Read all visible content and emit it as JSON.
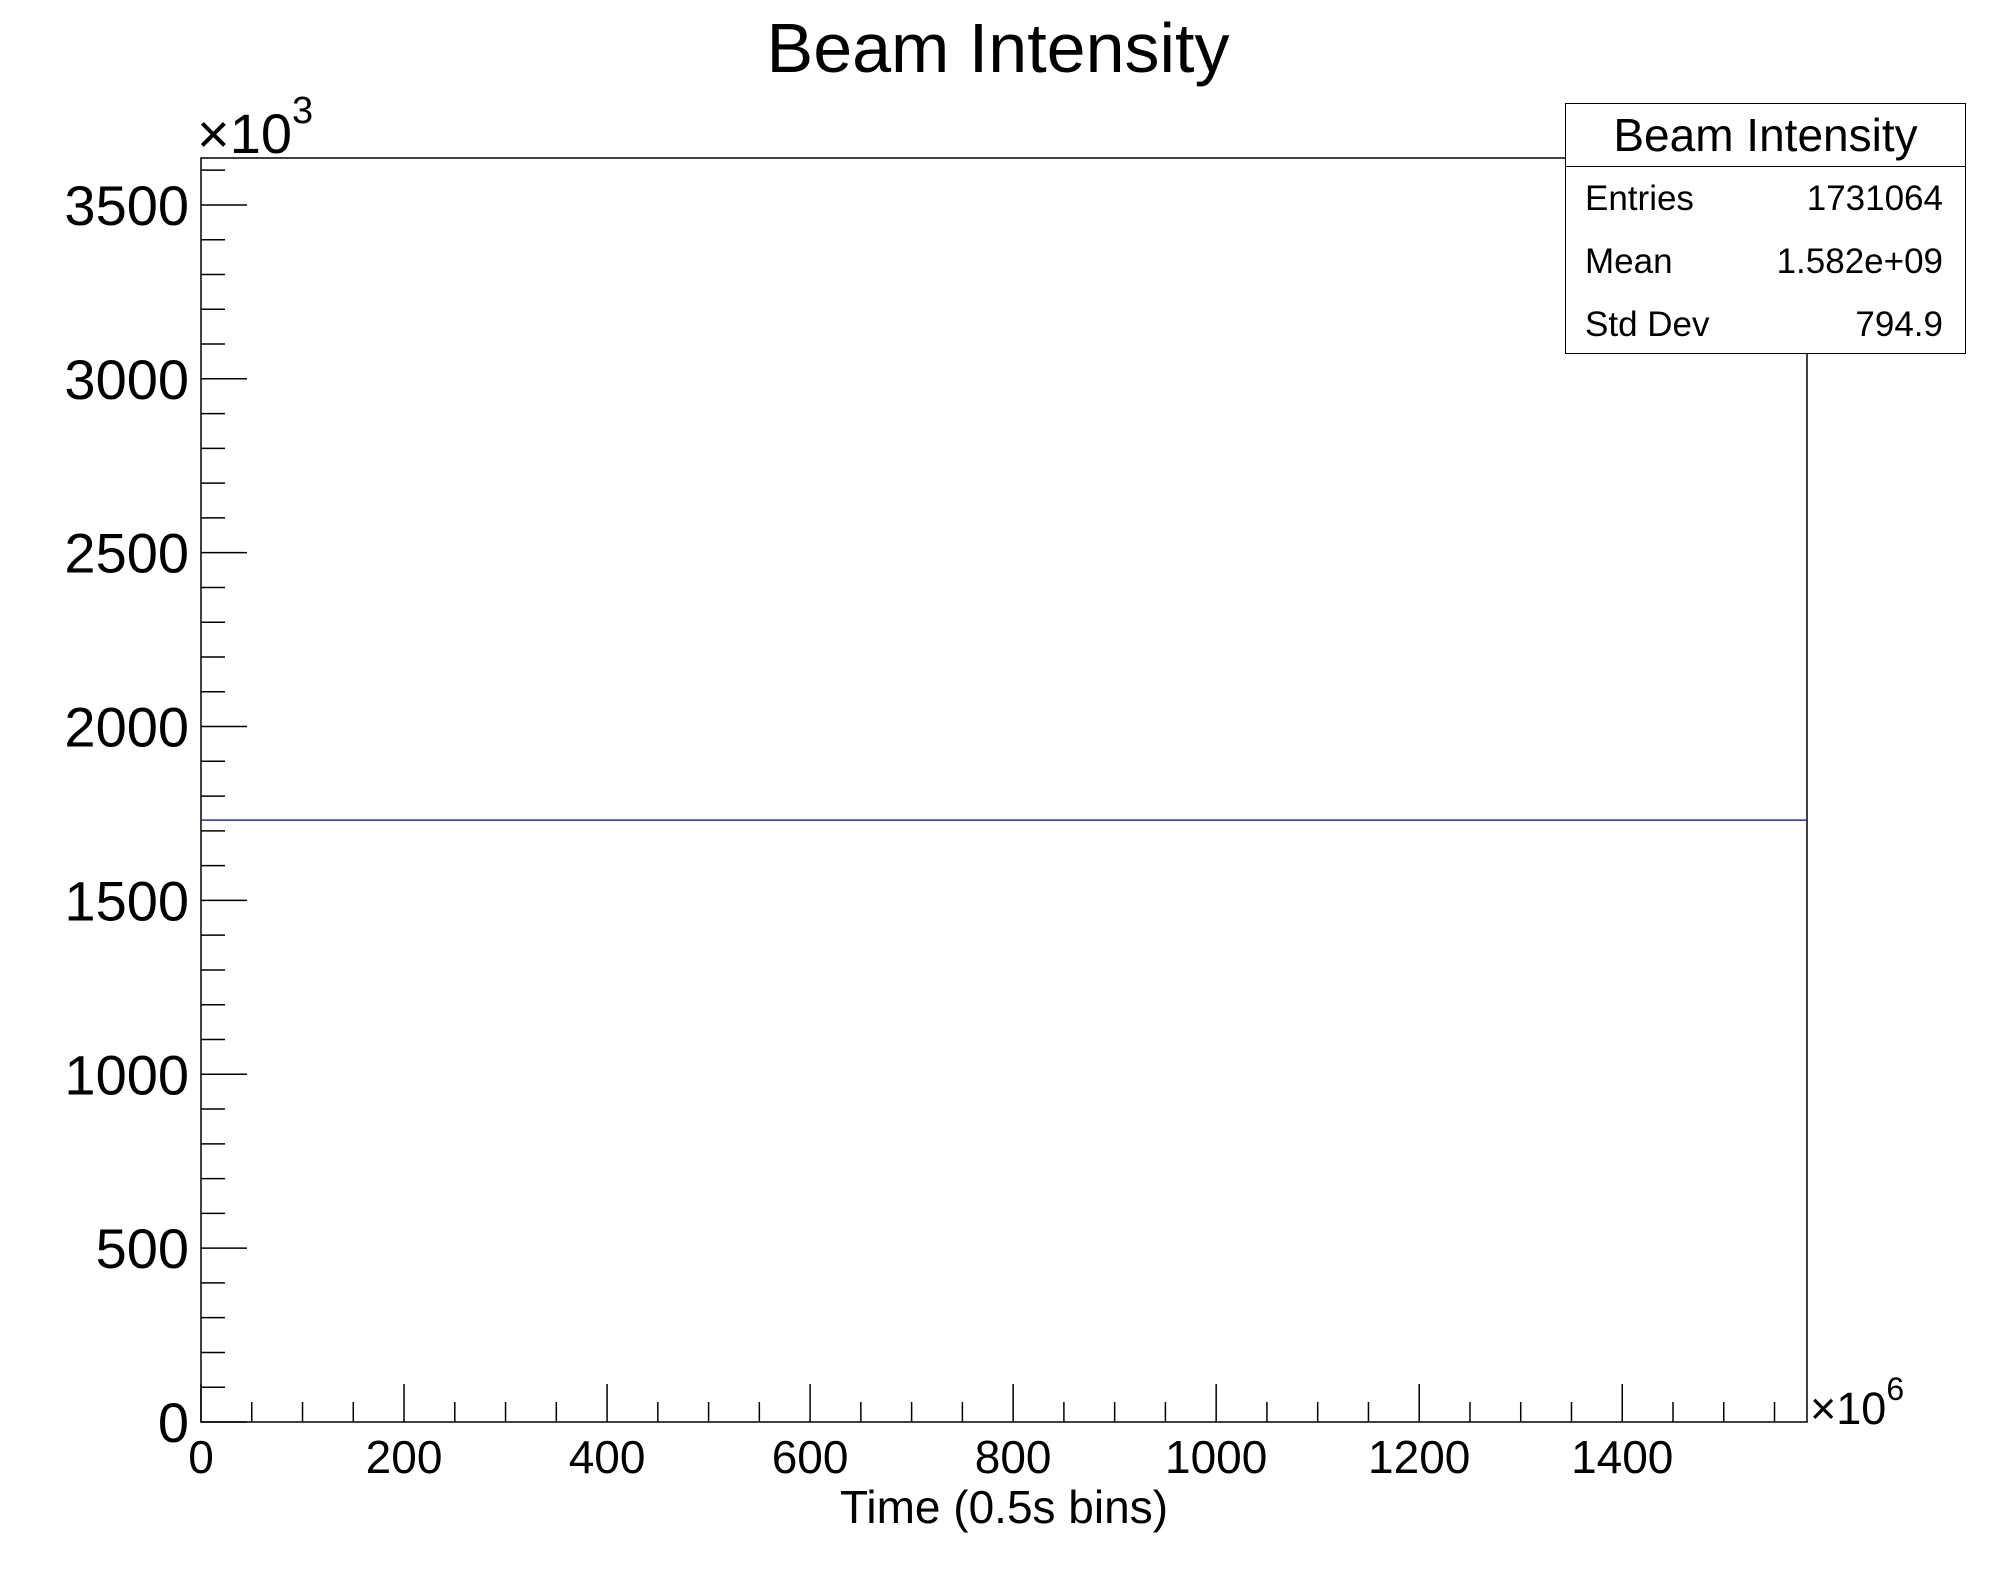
{
  "chart_data": {
    "type": "line",
    "title": "Beam Intensity",
    "xlabel": "Time (0.5s bins)",
    "ylabel": "",
    "x_multiplier": "×10",
    "x_exponent": "6",
    "y_multiplier": "×10",
    "y_exponent": "3",
    "xlim": [
      0,
      1582
    ],
    "ylim": [
      0,
      3635
    ],
    "x_ticks": [
      0,
      200,
      400,
      600,
      800,
      1000,
      1200,
      1400
    ],
    "x_tick_labels": [
      "0",
      "200",
      "400",
      "600",
      "800",
      "1000",
      "1200",
      "1400"
    ],
    "y_ticks": [
      0,
      500,
      1000,
      1500,
      2000,
      2500,
      3000,
      3500
    ],
    "y_tick_labels": [
      "0",
      "500",
      "1000",
      "1500",
      "2000",
      "2500",
      "3000",
      "3500"
    ],
    "series": [
      {
        "x": [
          0,
          1582
        ],
        "values": [
          1731,
          1731
        ],
        "color": "#1f2dbf"
      }
    ],
    "grid": false,
    "legend": "none"
  },
  "stats_box": {
    "title": "Beam Intensity",
    "rows": [
      {
        "label": "Entries",
        "value": "1731064"
      },
      {
        "label": "Mean",
        "value": "1.582e+09"
      },
      {
        "label": "Std Dev",
        "value": "794.9"
      }
    ]
  }
}
